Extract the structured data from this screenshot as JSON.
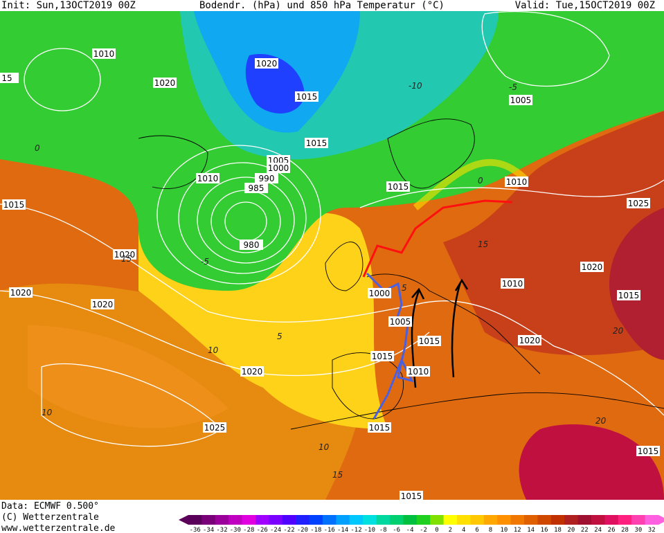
{
  "header": {
    "init": "Init: Sun,13OCT2019 00Z",
    "title": "Bodendr. (hPa) und 850 hPa Temperatur (°C)",
    "valid": "Valid: Tue,15OCT2019 00Z"
  },
  "footer": {
    "data": "Data: ECMWF  0.500°",
    "copyright": "(C) Wetterzentrale",
    "url": "www.wetterzentrale.de"
  },
  "colorbar": {
    "ticks": [
      -36,
      -34,
      -32,
      -30,
      -28,
      -26,
      -24,
      -22,
      -20,
      -18,
      -16,
      -14,
      -12,
      -10,
      -8,
      -6,
      -4,
      -2,
      0,
      2,
      4,
      6,
      8,
      10,
      12,
      14,
      16,
      18,
      20,
      22,
      24,
      26,
      28,
      30,
      32
    ],
    "colors": [
      "#5a005a",
      "#7a007a",
      "#9b009b",
      "#c000c0",
      "#e000e0",
      "#a000ff",
      "#7a00ff",
      "#5000ff",
      "#2020ff",
      "#0040ff",
      "#0070ff",
      "#00a0ff",
      "#00c8ff",
      "#00e0e0",
      "#00d8a0",
      "#00d070",
      "#00c040",
      "#20d020",
      "#80e000",
      "#ffff00",
      "#ffe000",
      "#ffc800",
      "#ffa800",
      "#ff9000",
      "#f07800",
      "#e06000",
      "#d04800",
      "#c03000",
      "#b02020",
      "#a01030",
      "#c01040",
      "#e01060",
      "#ff2080",
      "#ff40b0",
      "#ff60e0"
    ]
  },
  "isobar_labels": [
    "1010",
    "15",
    "1020",
    "1020",
    "1015",
    "1005",
    "1015",
    "1005",
    "1000",
    "990",
    "985",
    "980",
    "1010",
    "1015",
    "1015",
    "1010",
    "1025",
    "1020",
    "1020",
    "1020",
    "1015",
    "1010",
    "1000",
    "1005",
    "1015",
    "1015",
    "1020",
    "1010",
    "1020",
    "1025",
    "1015",
    "1015",
    "1020",
    "1015"
  ],
  "temperature_labels": [
    "-10",
    "-5",
    "0",
    "0",
    "5",
    "-5",
    "5",
    "10",
    "10",
    "15",
    "15",
    "20",
    "10",
    "15",
    "20"
  ]
}
